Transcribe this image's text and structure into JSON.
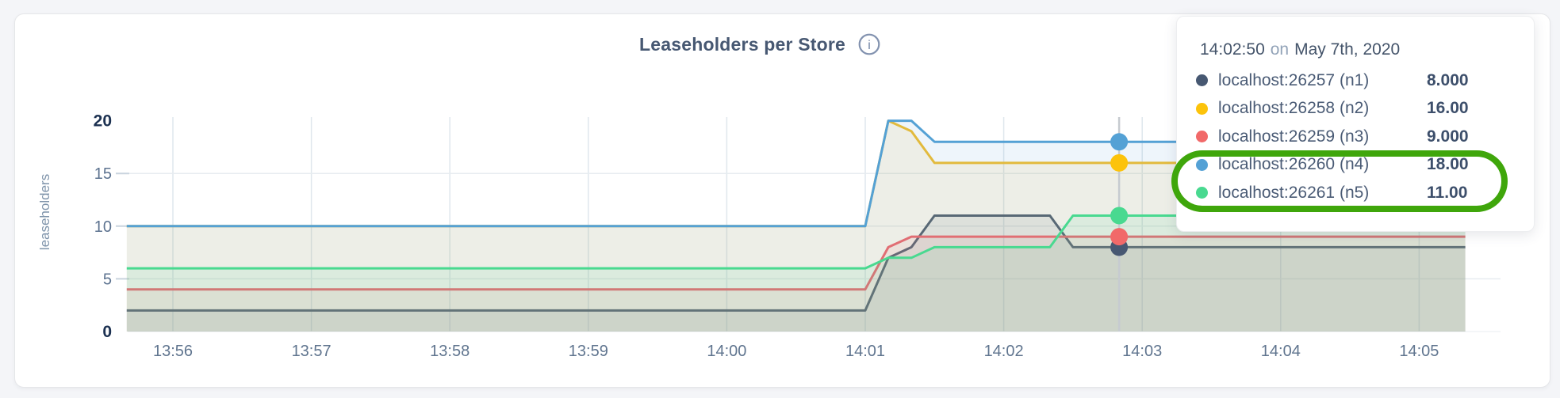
{
  "header": {
    "title": "Leaseholders per Store",
    "info_glyph": "i"
  },
  "chart_data": {
    "type": "area",
    "title": "Leaseholders per Store",
    "ylabel": "leaseholders",
    "ylim": [
      0,
      20
    ],
    "y_ticks": [
      0,
      5,
      10,
      15,
      20
    ],
    "x_ticks": [
      "13:56",
      "13:57",
      "13:58",
      "13:59",
      "14:00",
      "14:01",
      "14:02",
      "14:03",
      "14:04",
      "14:05"
    ],
    "grid": "on",
    "series": [
      {
        "name": "localhost:26257 (n1)",
        "color": "#475872",
        "points": [
          [
            "13:55:40",
            2
          ],
          [
            "14:01:00",
            2
          ],
          [
            "14:01:10",
            7
          ],
          [
            "14:01:20",
            8
          ],
          [
            "14:01:30",
            11
          ],
          [
            "14:02:20",
            11
          ],
          [
            "14:02:30",
            8
          ],
          [
            "14:05:20",
            8
          ]
        ]
      },
      {
        "name": "localhost:26258 (n2)",
        "color": "#F2BE2C",
        "points": [
          [
            "13:55:40",
            10
          ],
          [
            "14:01:00",
            10
          ],
          [
            "14:01:10",
            20
          ],
          [
            "14:01:20",
            19
          ],
          [
            "14:01:30",
            16
          ],
          [
            "14:05:20",
            16
          ]
        ]
      },
      {
        "name": "localhost:26259 (n3)",
        "color": "#F16969",
        "points": [
          [
            "13:55:40",
            4
          ],
          [
            "14:01:00",
            4
          ],
          [
            "14:01:10",
            8
          ],
          [
            "14:01:20",
            9
          ],
          [
            "14:05:20",
            9
          ]
        ]
      },
      {
        "name": "localhost:26260 (n4)",
        "color": "#54A1D5",
        "points": [
          [
            "13:55:40",
            10
          ],
          [
            "14:01:00",
            10
          ],
          [
            "14:01:10",
            20
          ],
          [
            "14:01:20",
            20
          ],
          [
            "14:01:30",
            18
          ],
          [
            "14:05:20",
            18
          ]
        ]
      },
      {
        "name": "localhost:26261 (n5)",
        "color": "#49D990",
        "points": [
          [
            "13:55:40",
            6
          ],
          [
            "14:01:00",
            6
          ],
          [
            "14:01:10",
            7
          ],
          [
            "14:01:20",
            7
          ],
          [
            "14:01:30",
            8
          ],
          [
            "14:02:20",
            8
          ],
          [
            "14:02:30",
            11
          ],
          [
            "14:05:20",
            11
          ]
        ]
      }
    ],
    "hover": {
      "time": "14:02:50",
      "values": [
        8,
        16,
        9,
        18,
        11
      ]
    }
  },
  "tooltip": {
    "time": "14:02:50",
    "on_word": "on",
    "date": "May 7th, 2020",
    "rows": [
      {
        "label": "localhost:26257 (n1)",
        "value": "8.000",
        "color": "#475872"
      },
      {
        "label": "localhost:26258 (n2)",
        "value": "16.00",
        "color": "#FCC30B"
      },
      {
        "label": "localhost:26259 (n3)",
        "value": "9.000",
        "color": "#F16969"
      },
      {
        "label": "localhost:26260 (n4)",
        "value": "18.00",
        "color": "#54A1D5"
      },
      {
        "label": "localhost:26261 (n5)",
        "value": "11.00",
        "color": "#49D990"
      }
    ]
  },
  "annotation": {
    "color": "#3FA60B",
    "circled_rows": [
      "localhost:26260 (n4)",
      "localhost:26261 (n5)"
    ]
  }
}
